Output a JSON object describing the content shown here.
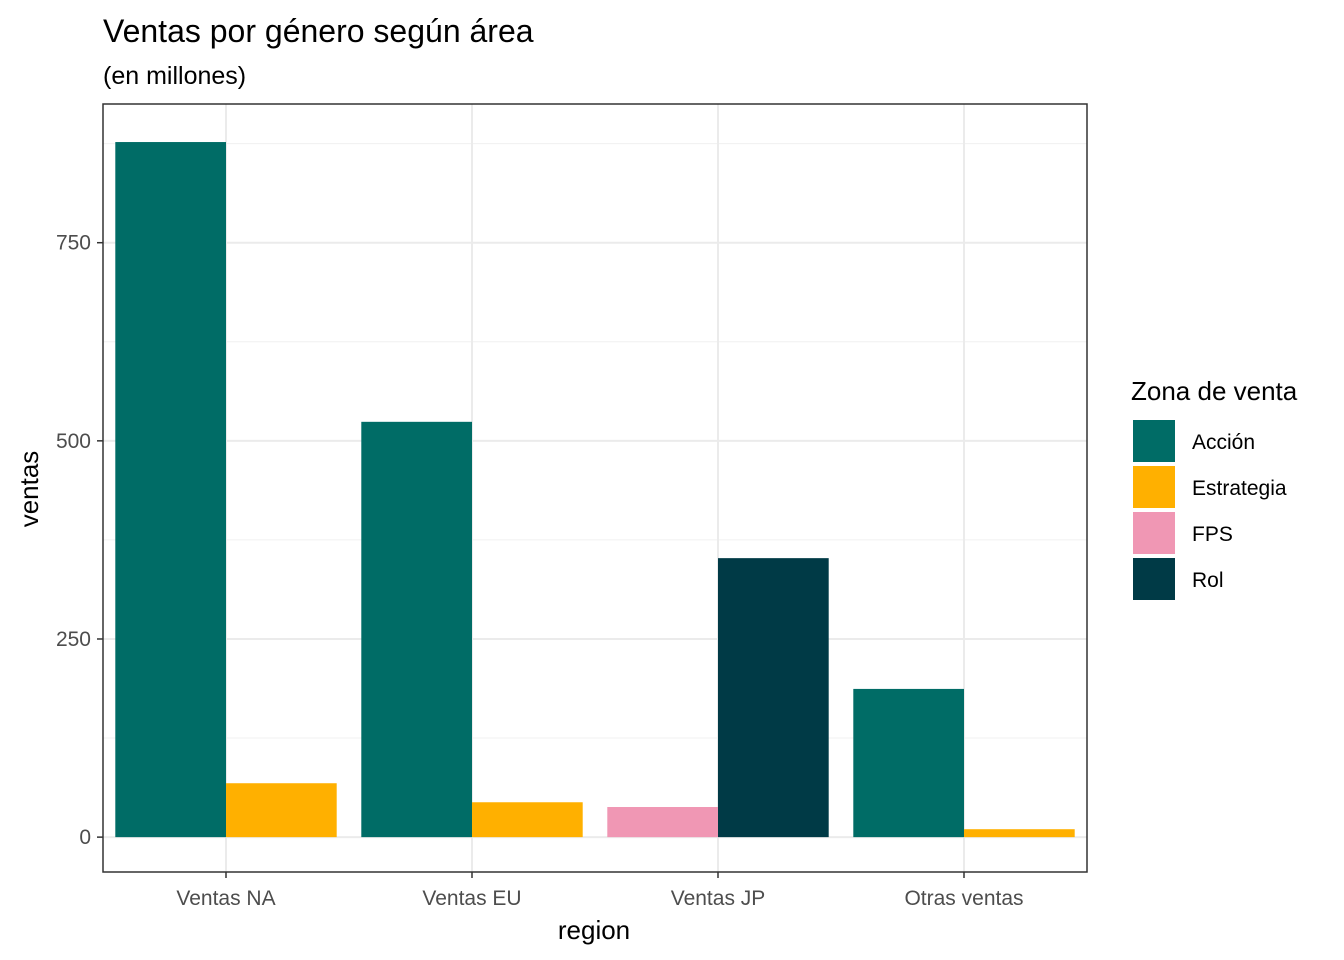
{
  "chart_data": {
    "type": "bar",
    "title": "Ventas por género según área",
    "subtitle": "(en millones)",
    "xlabel": "region",
    "ylabel": "ventas",
    "categories": [
      "Ventas NA",
      "Ventas EU",
      "Ventas JP",
      "Otras ventas"
    ],
    "yticks": [
      0,
      250,
      500,
      750
    ],
    "ylim": [
      -44,
      925
    ],
    "grid": true,
    "legend": {
      "title": "Zona de venta",
      "position": "right",
      "entries": [
        {
          "label": "Acción",
          "color": "#006C66"
        },
        {
          "label": "Estrategia",
          "color": "#FFB000"
        },
        {
          "label": "FPS",
          "color": "#F097B4"
        },
        {
          "label": "Rol",
          "color": "#003A46"
        }
      ]
    },
    "groups": [
      {
        "category": "Ventas NA",
        "bars": [
          {
            "genre": "Acción",
            "value": 877
          },
          {
            "genre": "Estrategia",
            "value": 68
          }
        ]
      },
      {
        "category": "Ventas EU",
        "bars": [
          {
            "genre": "Acción",
            "value": 524
          },
          {
            "genre": "Estrategia",
            "value": 44
          }
        ]
      },
      {
        "category": "Ventas JP",
        "bars": [
          {
            "genre": "FPS",
            "value": 38
          },
          {
            "genre": "Rol",
            "value": 352
          }
        ]
      },
      {
        "category": "Otras ventas",
        "bars": [
          {
            "genre": "Acción",
            "value": 187
          },
          {
            "genre": "Estrategia",
            "value": 10
          }
        ]
      }
    ]
  }
}
